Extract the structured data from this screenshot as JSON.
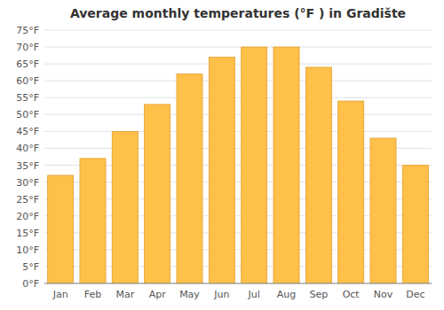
{
  "chart_data": {
    "type": "bar",
    "title": "Average monthly temperatures (°F ) in Gradište",
    "categories": [
      "Jan",
      "Feb",
      "Mar",
      "Apr",
      "May",
      "Jun",
      "Jul",
      "Aug",
      "Sep",
      "Oct",
      "Nov",
      "Dec"
    ],
    "values": [
      32,
      37,
      45,
      53,
      62,
      67,
      70,
      70,
      64,
      54,
      43,
      35
    ],
    "color": "#FFC04A",
    "ylim": [
      0,
      75
    ],
    "yticks": [
      {
        "value": 0,
        "label": "0°F"
      },
      {
        "value": 5,
        "label": "5°F"
      },
      {
        "value": 10,
        "label": "10°F"
      },
      {
        "value": 15,
        "label": "15°F"
      },
      {
        "value": 20,
        "label": "20°F"
      },
      {
        "value": 25,
        "label": "25°F"
      },
      {
        "value": 30,
        "label": "30°F"
      },
      {
        "value": 35,
        "label": "35°F"
      },
      {
        "value": 40,
        "label": "40°F"
      },
      {
        "value": 45,
        "label": "45°F"
      },
      {
        "value": 50,
        "label": "50°F"
      },
      {
        "value": 55,
        "label": "55°F"
      },
      {
        "value": 60,
        "label": "60°F"
      },
      {
        "value": 65,
        "label": "65°F"
      },
      {
        "value": 70,
        "label": "70°F"
      },
      {
        "value": 75,
        "label": "75°F"
      }
    ],
    "grid": true
  }
}
